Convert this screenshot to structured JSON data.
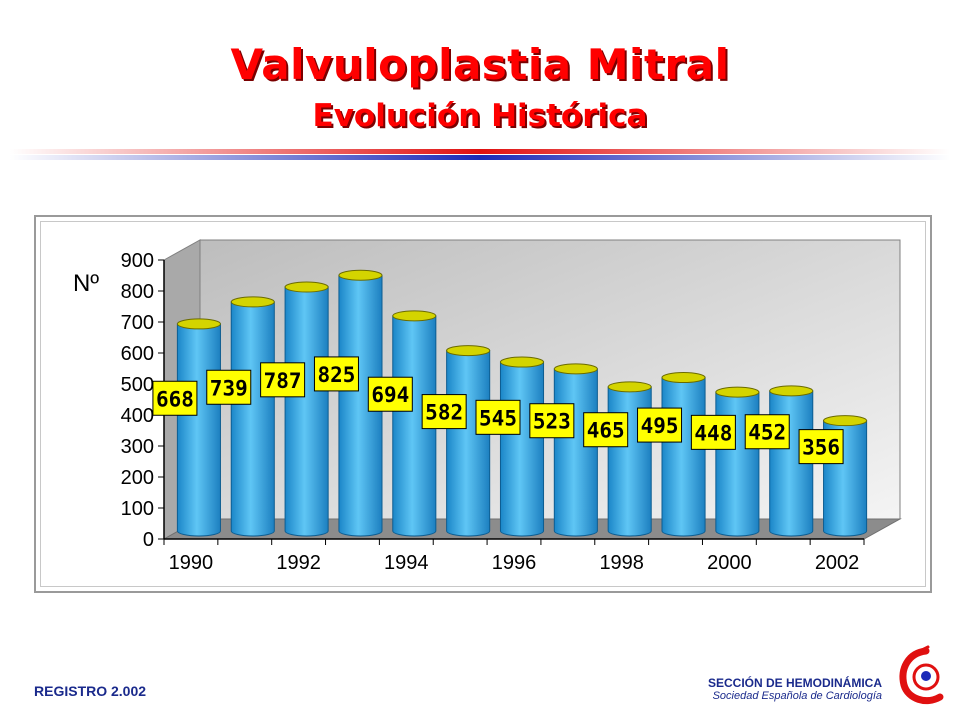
{
  "slide": {
    "title": "Valvuloplastia Mitral",
    "subtitle": "Evolución Histórica"
  },
  "footer": {
    "left": "REGISTRO 2.002",
    "section": "SECCIÓN DE HEMODINÁMICA",
    "society": "Sociedad Española de Cardiología"
  },
  "colors": {
    "title": "#ff0000",
    "bar": "#33a9e8",
    "bar_top": "#d4d400",
    "label_bg": "#ffff00"
  },
  "chart_data": {
    "type": "bar",
    "style": "3d-cylinder",
    "ylabel": "Nº",
    "ylim": [
      0,
      900
    ],
    "yticks": [
      0,
      100,
      200,
      300,
      400,
      500,
      600,
      700,
      800,
      900
    ],
    "x_tick_labels": [
      "1990",
      "1992",
      "1994",
      "1996",
      "1998",
      "2000",
      "2002"
    ],
    "categories": [
      "1990",
      "1991",
      "1992",
      "1993",
      "1994",
      "1995",
      "1996",
      "1997",
      "1998",
      "1999",
      "2000",
      "2001",
      "2002"
    ],
    "values": [
      668,
      739,
      787,
      825,
      694,
      582,
      545,
      523,
      465,
      495,
      448,
      452,
      356
    ],
    "data_labels": [
      "668",
      "739",
      "787",
      "825",
      "694",
      "582",
      "545",
      "523",
      "465",
      "495",
      "448",
      "452",
      "356"
    ],
    "grid": false,
    "legend": "none"
  }
}
